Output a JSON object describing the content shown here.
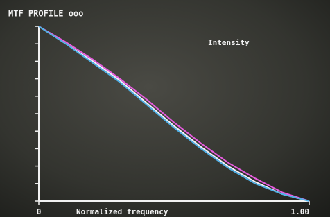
{
  "chart_data": {
    "type": "line",
    "title": "MTF PROFILE ooo",
    "y_label": "Intensity",
    "x_label": "Normalized frequency",
    "x": [
      0,
      0.1,
      0.2,
      0.3,
      0.4,
      0.5,
      0.6,
      0.7,
      0.8,
      0.9,
      1
    ],
    "series": [
      {
        "color": "#f4f0f8",
        "values": [
          1,
          0.9,
          0.8,
          0.69,
          0.56,
          0.43,
          0.31,
          0.2,
          0.11,
          0.04,
          0
        ]
      },
      {
        "color": "#e85ce0",
        "values": [
          1,
          0.91,
          0.81,
          0.7,
          0.58,
          0.45,
          0.33,
          0.22,
          0.13,
          0.05,
          0
        ]
      },
      {
        "color": "#4fb2e8",
        "values": [
          1,
          0.9,
          0.79,
          0.68,
          0.55,
          0.42,
          0.3,
          0.19,
          0.1,
          0.04,
          0
        ]
      }
    ],
    "xlim": [
      0,
      1
    ],
    "ylim": [
      0,
      1
    ],
    "xticks": [
      0,
      {
        "value": 1,
        "label": "1.00"
      }
    ],
    "yticks": [
      0,
      0.1,
      0.2,
      0.3,
      0.4,
      0.5,
      0.6,
      0.7,
      0.8,
      0.9,
      1
    ]
  }
}
